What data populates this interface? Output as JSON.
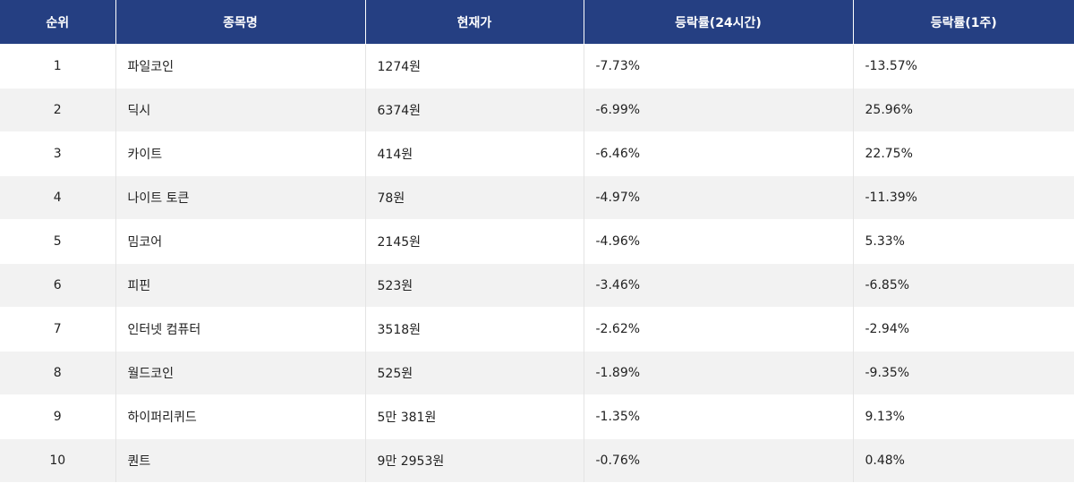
{
  "table": {
    "headers": [
      "순위",
      "종목명",
      "현재가",
      "등락률(24시간)",
      "등락률(1주)"
    ],
    "rows": [
      [
        "1",
        "파일코인",
        "1274원",
        "-7.73%",
        "-13.57%"
      ],
      [
        "2",
        "딕시",
        "6374원",
        "-6.99%",
        "25.96%"
      ],
      [
        "3",
        "카이트",
        "414원",
        "-6.46%",
        "22.75%"
      ],
      [
        "4",
        "나이트 토큰",
        "78원",
        "-4.97%",
        "-11.39%"
      ],
      [
        "5",
        "밈코어",
        "2145원",
        "-4.96%",
        "5.33%"
      ],
      [
        "6",
        "피핀",
        "523원",
        "-3.46%",
        "-6.85%"
      ],
      [
        "7",
        "인터넷 컴퓨터",
        "3518원",
        "-2.62%",
        "-2.94%"
      ],
      [
        "8",
        "월드코인",
        "525원",
        "-1.89%",
        "-9.35%"
      ],
      [
        "9",
        "하이퍼리퀴드",
        "5만 381원",
        "-1.35%",
        "9.13%"
      ],
      [
        "10",
        "퀀트",
        "9만 2953원",
        "-0.76%",
        "0.48%"
      ]
    ]
  }
}
